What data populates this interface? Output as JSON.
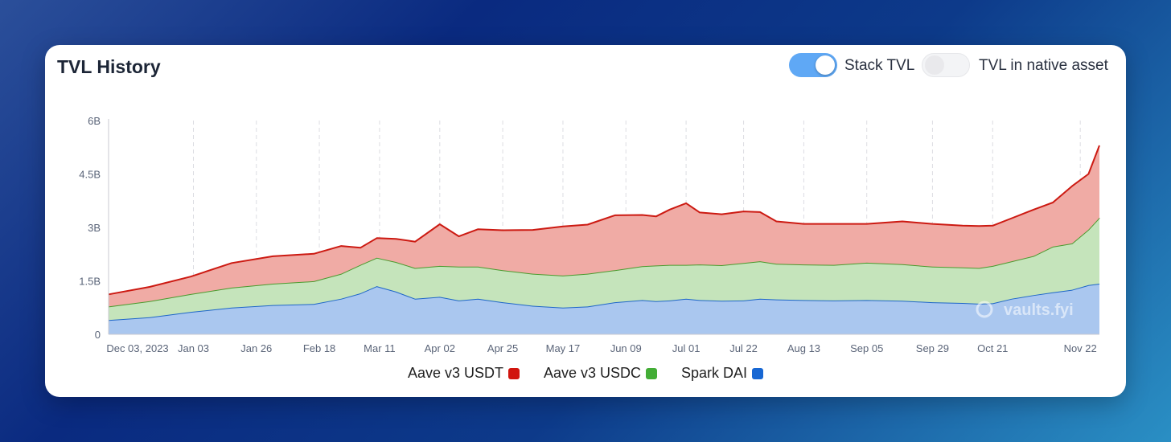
{
  "header": {
    "title": "TVL History",
    "stack_toggle_label": "Stack TVL",
    "native_toggle_label": "TVL in native asset",
    "stack_on": true,
    "native_on": false
  },
  "watermark": "vaults.fyi",
  "colors": {
    "usdt_line": "#cc1a12",
    "usdt_fill": "#f0aba5",
    "usdc_line": "#4a9a2e",
    "usdc_fill": "#c5e4bb",
    "dai_line": "#1e66c8",
    "dai_fill": "#aac7ef"
  },
  "chart_data": {
    "type": "area",
    "stacked": true,
    "title": "TVL History",
    "ylim": [
      0,
      6000000000
    ],
    "y_ticks": [
      {
        "value": 0,
        "label": "0"
      },
      {
        "value": 1500000000,
        "label": "1.5B"
      },
      {
        "value": 3000000000,
        "label": "3B"
      },
      {
        "value": 4500000000,
        "label": "4.5B"
      },
      {
        "value": 6000000000,
        "label": "6B"
      }
    ],
    "x_ticks": [
      {
        "x": 0,
        "label": "Dec 03, 2023"
      },
      {
        "x": 31,
        "label": "Jan 03"
      },
      {
        "x": 54,
        "label": "Jan 26"
      },
      {
        "x": 77,
        "label": "Feb 18"
      },
      {
        "x": 99,
        "label": "Mar 11"
      },
      {
        "x": 121,
        "label": "Apr 02"
      },
      {
        "x": 144,
        "label": "Apr 25"
      },
      {
        "x": 166,
        "label": "May 17"
      },
      {
        "x": 189,
        "label": "Jun 09"
      },
      {
        "x": 211,
        "label": "Jul 01"
      },
      {
        "x": 232,
        "label": "Jul 22"
      },
      {
        "x": 254,
        "label": "Aug 13"
      },
      {
        "x": 277,
        "label": "Sep 05"
      },
      {
        "x": 301,
        "label": "Sep 29"
      },
      {
        "x": 323,
        "label": "Oct 21"
      },
      {
        "x": 355,
        "label": "Nov 22"
      }
    ],
    "xlim": [
      0,
      362
    ],
    "x": [
      0,
      15,
      30,
      45,
      60,
      75,
      85,
      92,
      98,
      105,
      112,
      121,
      128,
      135,
      144,
      155,
      166,
      175,
      185,
      195,
      200,
      205,
      211,
      216,
      224,
      232,
      238,
      244,
      254,
      265,
      277,
      290,
      301,
      312,
      318,
      323,
      330,
      338,
      345,
      352,
      358,
      362
    ],
    "series": [
      {
        "name": "Spark DAI",
        "values": [
          400,
          480,
          630,
          750,
          820,
          850,
          1000,
          1150,
          1350,
          1200,
          1000,
          1050,
          950,
          1000,
          900,
          800,
          750,
          780,
          900,
          960,
          930,
          950,
          1000,
          960,
          940,
          950,
          1000,
          980,
          960,
          950,
          960,
          940,
          900,
          880,
          860,
          870,
          1000,
          1100,
          1180,
          1250,
          1380,
          1420
        ]
      },
      {
        "name": "Aave v3 USDC",
        "values": [
          380,
          450,
          500,
          560,
          600,
          640,
          700,
          800,
          800,
          830,
          860,
          870,
          950,
          900,
          900,
          900,
          900,
          920,
          900,
          950,
          1000,
          1000,
          950,
          1000,
          1000,
          1050,
          1050,
          1000,
          1000,
          1000,
          1050,
          1030,
          1000,
          1000,
          1000,
          1050,
          1050,
          1100,
          1280,
          1300,
          1560,
          1850
        ]
      },
      {
        "name": "Aave v3 USDT",
        "values": [
          340,
          400,
          490,
          690,
          770,
          770,
          780,
          480,
          550,
          650,
          740,
          1170,
          850,
          1050,
          1120,
          1230,
          1380,
          1380,
          1540,
          1440,
          1380,
          1550,
          1730,
          1460,
          1430,
          1450,
          1380,
          1190,
          1140,
          1150,
          1090,
          1200,
          1200,
          1170,
          1180,
          1130,
          1210,
          1300,
          1240,
          1610,
          1560,
          2030
        ]
      }
    ]
  },
  "legend": [
    {
      "label": "Aave v3 USDT",
      "color": "#d1150e"
    },
    {
      "label": "Aave v3 USDC",
      "color": "#43ad36"
    },
    {
      "label": "Spark DAI",
      "color": "#1767d3"
    }
  ]
}
